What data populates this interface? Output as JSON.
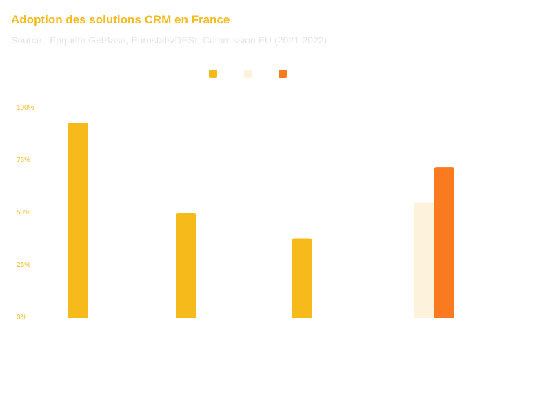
{
  "title": "Adoption des solutions CRM en France",
  "subtitle": "Source : Enquête GetBase, Eurostats/DESI, Commission EU (2021-2022)",
  "colors": {
    "series_1": "#F7BA1B",
    "series_2": "#FDF2DC",
    "series_3": "#F97A1F",
    "title": "#F7BA1B",
    "subtitle": "#E4E4E4"
  },
  "chart_data": {
    "type": "bar",
    "categories": [
      "",
      "",
      "",
      ""
    ],
    "series": [
      {
        "values": [
          93,
          50,
          38,
          null
        ],
        "color": "#F7BA1B"
      },
      {
        "values": [
          null,
          null,
          null,
          55
        ],
        "color": "#FDF2DC"
      },
      {
        "values": [
          null,
          null,
          null,
          72
        ],
        "color": "#F97A1F"
      }
    ],
    "y_ticks": [
      "0%",
      "25%",
      "50%",
      "75%",
      "100%"
    ],
    "ylim": [
      0,
      100
    ],
    "grid": false,
    "legend": "top-center",
    "xlabel": "",
    "ylabel": ""
  }
}
